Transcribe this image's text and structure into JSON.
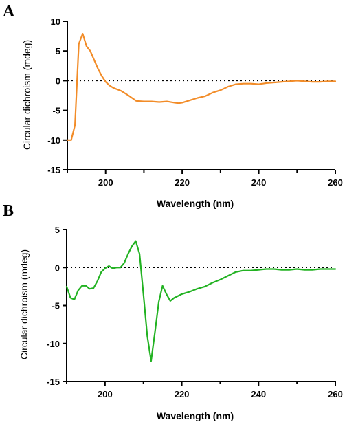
{
  "chart_data": [
    {
      "panel": "A",
      "type": "line",
      "xlabel": "Wavelength (nm)",
      "ylabel": "Circular dichroism (mdeg)",
      "xlim": [
        190,
        260
      ],
      "ylim": [
        -15,
        10
      ],
      "xticks": [
        200,
        220,
        240,
        260
      ],
      "yticks": [
        10,
        5,
        0,
        -5,
        -10,
        -15
      ],
      "zero_line": "dotted",
      "color": "#f28c28",
      "x": [
        190,
        191,
        192,
        193,
        194,
        195,
        196,
        197,
        198,
        199,
        200,
        201,
        202,
        204,
        206,
        208,
        210,
        212,
        214,
        216,
        218,
        219,
        220,
        222,
        224,
        226,
        228,
        230,
        232,
        234,
        236,
        238,
        240,
        242,
        244,
        246,
        248,
        250,
        252,
        254,
        256,
        258,
        260
      ],
      "y": [
        -10.0,
        -10.0,
        -7.5,
        6.2,
        7.9,
        5.8,
        5.0,
        3.5,
        2.0,
        0.8,
        -0.2,
        -0.8,
        -1.2,
        -1.7,
        -2.5,
        -3.4,
        -3.5,
        -3.5,
        -3.6,
        -3.5,
        -3.7,
        -3.8,
        -3.7,
        -3.3,
        -2.9,
        -2.6,
        -2.0,
        -1.6,
        -1.0,
        -0.6,
        -0.5,
        -0.5,
        -0.6,
        -0.4,
        -0.3,
        -0.2,
        -0.1,
        0.0,
        -0.1,
        -0.2,
        -0.2,
        -0.1,
        -0.1
      ]
    },
    {
      "panel": "B",
      "type": "line",
      "xlabel": "Wavelength (nm)",
      "ylabel": "Circular dichroism (mdeg)",
      "xlim": [
        190,
        260
      ],
      "ylim": [
        -15,
        5
      ],
      "xticks": [
        200,
        220,
        240,
        260
      ],
      "yticks": [
        5,
        0,
        -5,
        -10,
        -15
      ],
      "zero_line": "dotted",
      "color": "#22b222",
      "x": [
        190,
        191,
        192,
        193,
        194,
        195,
        196,
        197,
        198,
        199,
        200,
        201,
        202,
        203,
        204,
        205,
        206,
        207,
        208,
        209,
        210,
        211,
        212,
        213,
        214,
        215,
        216,
        217,
        218,
        220,
        222,
        224,
        226,
        228,
        230,
        232,
        234,
        236,
        238,
        240,
        242,
        244,
        246,
        248,
        250,
        252,
        254,
        256,
        258,
        260
      ],
      "y": [
        -2.5,
        -4.0,
        -4.2,
        -3.0,
        -2.4,
        -2.4,
        -2.8,
        -2.7,
        -1.8,
        -0.6,
        -0.1,
        0.2,
        -0.1,
        0.0,
        0.0,
        0.6,
        1.8,
        2.8,
        3.5,
        1.8,
        -3.5,
        -9.0,
        -12.3,
        -8.5,
        -4.5,
        -2.4,
        -3.5,
        -4.4,
        -4.0,
        -3.5,
        -3.2,
        -2.8,
        -2.5,
        -2.0,
        -1.6,
        -1.1,
        -0.6,
        -0.4,
        -0.4,
        -0.3,
        -0.2,
        -0.2,
        -0.3,
        -0.3,
        -0.2,
        -0.3,
        -0.3,
        -0.2,
        -0.2,
        -0.2
      ]
    }
  ]
}
